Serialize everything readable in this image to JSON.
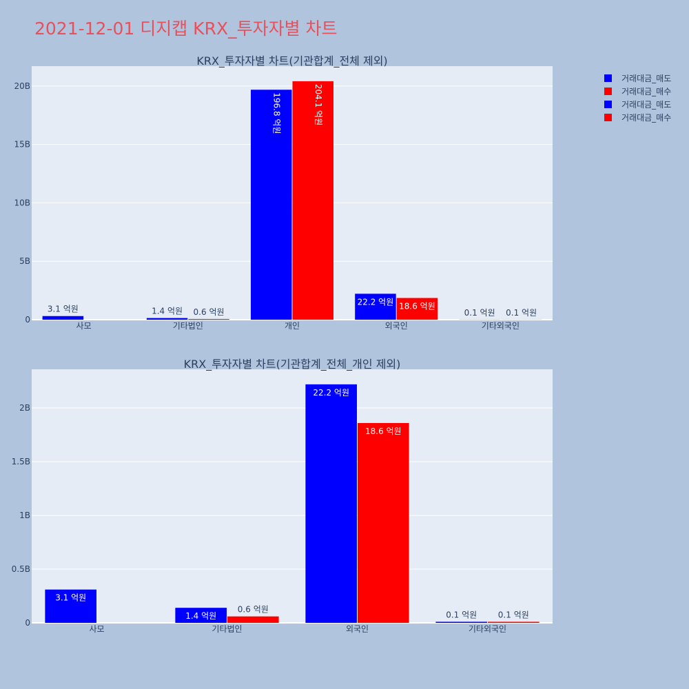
{
  "title": "2021-12-01 디지캡 KRX_투자자별 차트",
  "legend": [
    {
      "label": "거래대금_매도",
      "color": "#0000ff"
    },
    {
      "label": "거래대금_매수",
      "color": "#ff0000"
    },
    {
      "label": "거래대금_매도",
      "color": "#0000ff"
    },
    {
      "label": "거래대금_매수",
      "color": "#ff0000"
    }
  ],
  "chart_data": [
    {
      "type": "bar",
      "title": "KRX_투자자별 차트(기관합계_전체 제외)",
      "categories": [
        "사모",
        "기타법인",
        "개인",
        "외국인",
        "기타외국인"
      ],
      "series": [
        {
          "name": "거래대금_매도",
          "color": "#0000ff",
          "values": [
            310000000,
            140000000,
            19680000000,
            2220000000,
            10000000
          ],
          "labels": [
            "3.1 억원",
            "1.4 억원",
            "196.8 억원",
            "22.2 억원",
            "0.1 억원"
          ]
        },
        {
          "name": "거래대금_매수",
          "color": "#ff0000",
          "values": [
            0,
            60000000,
            20410000000,
            1860000000,
            10000000
          ],
          "labels": [
            "",
            "0.6 억원",
            "204.1 억원",
            "18.6 억원",
            "0.1 억원"
          ]
        }
      ],
      "yticks": [
        {
          "v": 0,
          "t": "0"
        },
        {
          "v": 5000000000,
          "t": "5B"
        },
        {
          "v": 10000000000,
          "t": "10B"
        },
        {
          "v": 15000000000,
          "t": "15B"
        },
        {
          "v": 20000000000,
          "t": "20B"
        }
      ],
      "ylim": [
        0,
        21700000000
      ],
      "grid": true
    },
    {
      "type": "bar",
      "title": "KRX_투자자별 차트(기관합계_전체_개인 제외)",
      "categories": [
        "사모",
        "기타법인",
        "외국인",
        "기타외국인"
      ],
      "series": [
        {
          "name": "거래대금_매도",
          "color": "#0000ff",
          "values": [
            310000000,
            140000000,
            2220000000,
            10000000
          ],
          "labels": [
            "3.1 억원",
            "1.4 억원",
            "22.2 억원",
            "0.1 억원"
          ]
        },
        {
          "name": "거래대금_매수",
          "color": "#ff0000",
          "values": [
            0,
            60000000,
            1860000000,
            10000000
          ],
          "labels": [
            "",
            "0.6 억원",
            "18.6 억원",
            "0.1 억원"
          ]
        }
      ],
      "yticks": [
        {
          "v": 0,
          "t": "0"
        },
        {
          "v": 500000000,
          "t": "0.5B"
        },
        {
          "v": 1000000000,
          "t": "1B"
        },
        {
          "v": 1500000000,
          "t": "1.5B"
        },
        {
          "v": 2000000000,
          "t": "2B"
        }
      ],
      "ylim": [
        0,
        2360000000
      ],
      "grid": true
    }
  ]
}
